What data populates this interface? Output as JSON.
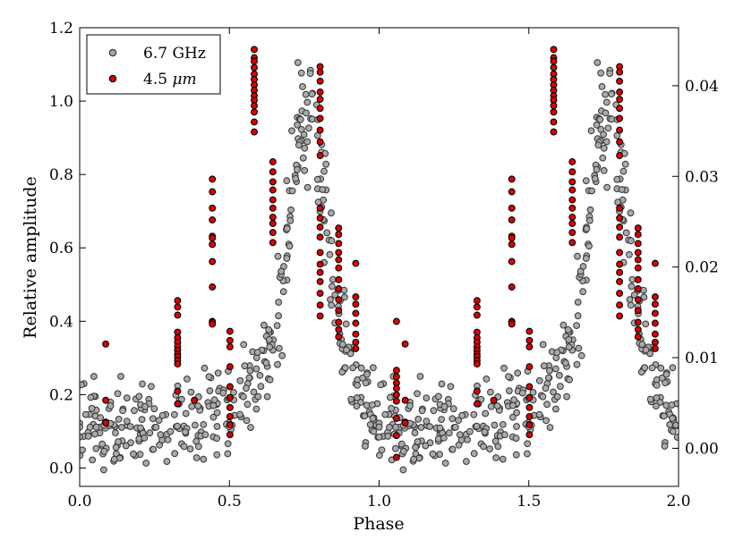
{
  "chart_data": {
    "type": "scatter",
    "xlabel": "Phase",
    "ylabel": "Relative amplitude",
    "xlim": [
      0.0,
      2.0
    ],
    "ylim": [
      -0.05,
      1.2
    ],
    "y2lim": [
      -0.0042,
      0.0464
    ],
    "xticks": [
      0.0,
      0.5,
      1.0,
      1.5,
      2.0
    ],
    "xtick_labels": [
      "0.0",
      "0.5",
      "1.0",
      "1.5",
      "2.0"
    ],
    "yticks": [
      0.0,
      0.2,
      0.4,
      0.6,
      0.8,
      1.0,
      1.2
    ],
    "ytick_labels": [
      "0.0",
      "0.2",
      "0.4",
      "0.6",
      "0.8",
      "1.0",
      "1.2"
    ],
    "y2ticks": [
      0.0,
      0.01,
      0.02,
      0.03,
      0.04
    ],
    "y2tick_labels": [
      "0.00",
      "0.01",
      "0.02",
      "0.03",
      "0.04"
    ],
    "legend_position": "top-left",
    "series": [
      {
        "name": "6.7 GHz",
        "style": "gray-open",
        "color": "#aaaaaa",
        "edge": "#333333",
        "axis": "left",
        "generator": "periodic-flare",
        "points_per_cycle": 380,
        "profile": [
          [
            0.0,
            0.13
          ],
          [
            0.3,
            0.11
          ],
          [
            0.5,
            0.17
          ],
          [
            0.62,
            0.26
          ],
          [
            0.68,
            0.5
          ],
          [
            0.72,
            0.85
          ],
          [
            0.76,
            0.96
          ],
          [
            0.79,
            0.88
          ],
          [
            0.84,
            0.55
          ],
          [
            0.88,
            0.33
          ],
          [
            0.93,
            0.22
          ],
          [
            1.0,
            0.13
          ]
        ],
        "scatter_amplitude": 0.085
      },
      {
        "name": "4.5 μm",
        "legend_parts": [
          "4.5 ",
          "μm"
        ],
        "style": "red-filled",
        "color": "#e00000",
        "edge": "#000000",
        "axis": "right",
        "points": [
          [
            0.087,
            0.0115
          ],
          [
            0.087,
            0.0053
          ],
          [
            0.087,
            0.0028
          ],
          [
            0.327,
            0.0163
          ],
          [
            0.327,
            0.0156
          ],
          [
            0.327,
            0.0147
          ],
          [
            0.327,
            0.0128
          ],
          [
            0.327,
            0.0122
          ],
          [
            0.327,
            0.0117
          ],
          [
            0.327,
            0.0112
          ],
          [
            0.327,
            0.0108
          ],
          [
            0.327,
            0.0104
          ],
          [
            0.327,
            0.0101
          ],
          [
            0.327,
            0.0097
          ],
          [
            0.327,
            0.0093
          ],
          [
            0.327,
            0.0063
          ],
          [
            0.327,
            0.0049
          ],
          [
            0.383,
            0.0053
          ],
          [
            0.443,
            0.0297
          ],
          [
            0.443,
            0.0283
          ],
          [
            0.443,
            0.0265
          ],
          [
            0.443,
            0.0252
          ],
          [
            0.443,
            0.0234
          ],
          [
            0.443,
            0.0232
          ],
          [
            0.443,
            0.0225
          ],
          [
            0.443,
            0.0206
          ],
          [
            0.443,
            0.0178
          ],
          [
            0.443,
            0.014
          ],
          [
            0.443,
            0.0139
          ],
          [
            0.443,
            0.0137
          ],
          [
            0.502,
            0.0129
          ],
          [
            0.502,
            0.0119
          ],
          [
            0.502,
            0.0112
          ],
          [
            0.502,
            0.009
          ],
          [
            0.502,
            0.0068
          ],
          [
            0.502,
            0.0056
          ],
          [
            0.502,
            0.0045
          ],
          [
            0.502,
            0.0035
          ],
          [
            0.502,
            0.0026
          ],
          [
            0.502,
            0.0015
          ],
          [
            0.583,
            0.044
          ],
          [
            0.583,
            0.0431
          ],
          [
            0.583,
            0.0427
          ],
          [
            0.583,
            0.042
          ],
          [
            0.583,
            0.0413
          ],
          [
            0.583,
            0.0407
          ],
          [
            0.583,
            0.0401
          ],
          [
            0.583,
            0.0395
          ],
          [
            0.583,
            0.0389
          ],
          [
            0.583,
            0.0384
          ],
          [
            0.583,
            0.0378
          ],
          [
            0.583,
            0.0371
          ],
          [
            0.583,
            0.036
          ],
          [
            0.583,
            0.0349
          ],
          [
            0.645,
            0.0316
          ],
          [
            0.645,
            0.0305
          ],
          [
            0.645,
            0.0294
          ],
          [
            0.645,
            0.0285
          ],
          [
            0.645,
            0.0274
          ],
          [
            0.645,
            0.0265
          ],
          [
            0.645,
            0.0255
          ],
          [
            0.645,
            0.0248
          ],
          [
            0.645,
            0.0238
          ],
          [
            0.645,
            0.0227
          ],
          [
            0.803,
            0.0421
          ],
          [
            0.803,
            0.0415
          ],
          [
            0.803,
            0.0405
          ],
          [
            0.803,
            0.0393
          ],
          [
            0.803,
            0.0385
          ],
          [
            0.803,
            0.0375
          ],
          [
            0.803,
            0.0364
          ],
          [
            0.803,
            0.0351
          ],
          [
            0.803,
            0.0338
          ],
          [
            0.803,
            0.0323
          ],
          [
            0.803,
            0.0265
          ],
          [
            0.803,
            0.0254
          ],
          [
            0.803,
            0.0244
          ],
          [
            0.803,
            0.0233
          ],
          [
            0.803,
            0.0216
          ],
          [
            0.803,
            0.0203
          ],
          [
            0.803,
            0.0194
          ],
          [
            0.803,
            0.0184
          ],
          [
            0.803,
            0.0171
          ],
          [
            0.803,
            0.0158
          ],
          [
            0.803,
            0.0146
          ],
          [
            0.865,
            0.0243
          ],
          [
            0.865,
            0.0236
          ],
          [
            0.865,
            0.0226
          ],
          [
            0.865,
            0.0216
          ],
          [
            0.865,
            0.0208
          ],
          [
            0.865,
            0.0199
          ],
          [
            0.865,
            0.0186
          ],
          [
            0.865,
            0.0176
          ],
          [
            0.865,
            0.0164
          ],
          [
            0.865,
            0.0152
          ],
          [
            0.865,
            0.0139
          ],
          [
            0.865,
            0.0131
          ],
          [
            0.865,
            0.0123
          ],
          [
            0.922,
            0.0167
          ],
          [
            0.922,
            0.0159
          ],
          [
            0.922,
            0.0149
          ],
          [
            0.922,
            0.0138
          ],
          [
            0.922,
            0.0126
          ],
          [
            0.922,
            0.0117
          ],
          [
            0.922,
            0.011
          ],
          [
            0.922,
            0.0204
          ],
          [
            1.058,
            0.014
          ],
          [
            1.058,
            0.0086
          ],
          [
            1.058,
            0.0079
          ],
          [
            1.058,
            0.0072
          ],
          [
            1.058,
            0.0066
          ],
          [
            1.058,
            0.0059
          ],
          [
            1.058,
            0.0052
          ],
          [
            1.058,
            0.0033
          ],
          [
            1.058,
            0.0014
          ],
          [
            1.058,
            -0.001
          ]
        ]
      }
    ]
  }
}
